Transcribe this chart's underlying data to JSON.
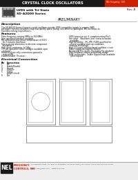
{
  "title": "CRYSTAL CLOCK OSCILLATORS",
  "title_bg": "#1a1a1a",
  "title_right_bg": "#cc2200",
  "title_right_text": "NEL Frequency  1/00",
  "rev_text": "Rev. B",
  "product_line1": "LVDS with Tri-State",
  "product_line2": "SD-A2D00 Series",
  "preliminary": "PRELIMINARY",
  "desc_title": "Description",
  "desc_body": "The SD-A2D00 Series of quartz crystal oscillators provide LVDS-compatible signals in ceramic SMD packages. Systems designers may now specify space-saving, cost-effective packaged, MIL oscillators to maximize timing requirements.",
  "features_title": "Features",
  "features_left": [
    "Pulse frequency ranging 6MHz to 250.0MHz",
    "User specified tolerance available",
    "Mil-calibrated input phase temperature of 250 C",
    "  for 4 minutes maximum",
    "Space-saving alternative to discrete component",
    "  oscillators",
    "High shock resistance, to 500g",
    "3.3 volt operation (other voltages available upon",
    "  request)",
    "Metal lid electrically connections ground to",
    "  reduce EMI",
    "Enable/Disable (Tri-state)"
  ],
  "features_right": [
    "LVDS output on pin 4, complementary Pin 5",
    "See other - Waveform jitter characterization",
    "  available",
    "High-Reliability - MIL-PRF-73485-qualified for",
    "  crystal oscillator start-up conditions",
    "Gracious technology",
    "High-Q Crystal inductor-based oscillator circuit",
    "Power supply decoupling internal",
    "No internal PLL results (excluding PLL platform)",
    "High-frequency driven proprietary design",
    "Gold connections - Solder dipped leads available",
    "  upon request"
  ],
  "elec_title": "Electrical Connection",
  "pin_header": [
    "Pin",
    "Connection"
  ],
  "pins": [
    [
      "1",
      "N/C"
    ],
    [
      "2",
      "Enable/Disable"
    ],
    [
      "3",
      "Ground"
    ],
    [
      "4",
      "Output+"
    ],
    [
      "5",
      "Output-"
    ],
    [
      "",
      "(single-check)"
    ],
    [
      "6",
      "Vps"
    ]
  ],
  "bg_color": "#ffffff",
  "footer_logo_bg": "#1a1a1a",
  "footer_logo_text": "NEL",
  "footer_company": "FREQUENCY\nCONTROLS, INC",
  "footer_company_color": "#cc2200",
  "footer_addr1": "107 Balsam Street, P.O. Box 97, Burlington, WI 53105-0097 | Tel. Phone: 00319-248-640 00370-248",
  "footer_addr2": "Email: info@nelfc.com    www.nelfc.com"
}
